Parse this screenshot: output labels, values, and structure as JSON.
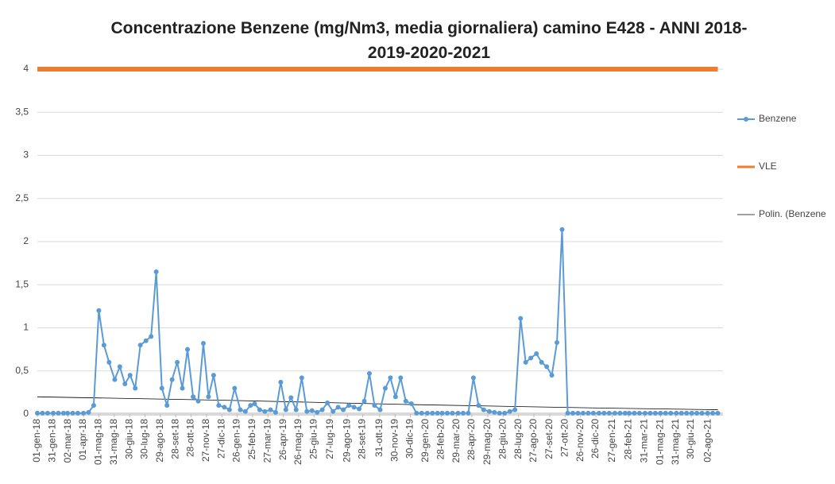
{
  "chart_data": {
    "type": "line",
    "title": "Concentrazione Benzene (mg/Nm3, media giornaliera) camino E428 - ANNI 2018-2019-2020-2021",
    "ylim": [
      0,
      4
    ],
    "yticks": [
      0,
      {
        "value": 0.5,
        "label": "0,5"
      },
      1,
      {
        "value": 1.5,
        "label": "1,5"
      },
      2,
      {
        "value": 2.5,
        "label": "2,5"
      },
      3,
      {
        "value": 3.5,
        "label": "3,5"
      },
      4
    ],
    "xlim": [
      "2018-01-01",
      "2021-08-31"
    ],
    "xticks": [
      {
        "value": "2018-01-01",
        "label": "01-gen-18"
      },
      {
        "value": "2018-01-31",
        "label": "31-gen-18"
      },
      {
        "value": "2018-03-02",
        "label": "02-mar-18"
      },
      {
        "value": "2018-04-01",
        "label": "01-apr-18"
      },
      {
        "value": "2018-05-01",
        "label": "01-mag-18"
      },
      {
        "value": "2018-05-31",
        "label": "31-mag-18"
      },
      {
        "value": "2018-06-30",
        "label": "30-giu-18"
      },
      {
        "value": "2018-07-30",
        "label": "30-lug-18"
      },
      {
        "value": "2018-08-29",
        "label": "29-ago-18"
      },
      {
        "value": "2018-09-28",
        "label": "28-set-18"
      },
      {
        "value": "2018-10-28",
        "label": "28-ott-18"
      },
      {
        "value": "2018-11-27",
        "label": "27-nov-18"
      },
      {
        "value": "2018-12-27",
        "label": "27-dic-18"
      },
      {
        "value": "2019-01-26",
        "label": "26-gen-19"
      },
      {
        "value": "2019-02-25",
        "label": "25-feb-19"
      },
      {
        "value": "2019-03-27",
        "label": "27-mar-19"
      },
      {
        "value": "2019-04-26",
        "label": "26-apr-19"
      },
      {
        "value": "2019-05-26",
        "label": "26-mag-19"
      },
      {
        "value": "2019-06-25",
        "label": "25-giu-19"
      },
      {
        "value": "2019-07-27",
        "label": "27-lug-19"
      },
      {
        "value": "2019-08-29",
        "label": "29-ago-19"
      },
      {
        "value": "2019-09-28",
        "label": "28-set-19"
      },
      {
        "value": "2019-10-31",
        "label": "31-ott-19"
      },
      {
        "value": "2019-11-30",
        "label": "30-nov-19"
      },
      {
        "value": "2019-12-30",
        "label": "30-dic-19"
      },
      {
        "value": "2020-01-29",
        "label": "29-gen-20"
      },
      {
        "value": "2020-02-28",
        "label": "28-feb-20"
      },
      {
        "value": "2020-03-29",
        "label": "29-mar-20"
      },
      {
        "value": "2020-04-28",
        "label": "28-apr-20"
      },
      {
        "value": "2020-05-29",
        "label": "29-mag-20"
      },
      {
        "value": "2020-06-28",
        "label": "28-giu-20"
      },
      {
        "value": "2020-07-28",
        "label": "28-lug-20"
      },
      {
        "value": "2020-08-27",
        "label": "27-ago-20"
      },
      {
        "value": "2020-09-27",
        "label": "27-set-20"
      },
      {
        "value": "2020-10-27",
        "label": "27-ott-20"
      },
      {
        "value": "2020-11-26",
        "label": "26-nov-20"
      },
      {
        "value": "2020-12-26",
        "label": "26-dic-20"
      },
      {
        "value": "2021-01-27",
        "label": "27-gen-21"
      },
      {
        "value": "2021-02-28",
        "label": "28-feb-21"
      },
      {
        "value": "2021-03-31",
        "label": "31-mar-21"
      },
      {
        "value": "2021-05-01",
        "label": "01-mag-21"
      },
      {
        "value": "2021-05-31",
        "label": "31-mag-21"
      },
      {
        "value": "2021-06-30",
        "label": "30-giu-21"
      },
      {
        "value": "2021-08-02",
        "label": "02-ago-21"
      }
    ],
    "series": [
      {
        "name": "Benzene",
        "color": "#5b9bd5",
        "markers": true,
        "x": [
          "2018-01-01",
          "2018-01-11",
          "2018-01-21",
          "2018-02-01",
          "2018-02-11",
          "2018-02-21",
          "2018-03-01",
          "2018-03-11",
          "2018-03-21",
          "2018-04-01",
          "2018-04-11",
          "2018-04-21",
          "2018-05-01",
          "2018-05-11",
          "2018-05-21",
          "2018-06-01",
          "2018-06-11",
          "2018-06-21",
          "2018-07-01",
          "2018-07-11",
          "2018-07-21",
          "2018-08-01",
          "2018-08-11",
          "2018-08-21",
          "2018-09-01",
          "2018-09-11",
          "2018-09-21",
          "2018-10-01",
          "2018-10-11",
          "2018-10-21",
          "2018-11-01",
          "2018-11-11",
          "2018-11-21",
          "2018-12-01",
          "2018-12-11",
          "2018-12-21",
          "2019-01-01",
          "2019-01-11",
          "2019-01-21",
          "2019-02-01",
          "2019-02-11",
          "2019-02-21",
          "2019-03-01",
          "2019-03-11",
          "2019-03-21",
          "2019-04-01",
          "2019-04-11",
          "2019-04-21",
          "2019-05-01",
          "2019-05-11",
          "2019-05-21",
          "2019-06-01",
          "2019-06-11",
          "2019-06-21",
          "2019-07-01",
          "2019-07-11",
          "2019-07-21",
          "2019-08-01",
          "2019-08-11",
          "2019-08-21",
          "2019-09-01",
          "2019-09-11",
          "2019-09-21",
          "2019-10-01",
          "2019-10-11",
          "2019-10-21",
          "2019-11-01",
          "2019-11-11",
          "2019-11-21",
          "2019-12-01",
          "2019-12-11",
          "2019-12-21",
          "2020-01-01",
          "2020-01-11",
          "2020-01-21",
          "2020-02-01",
          "2020-02-11",
          "2020-02-21",
          "2020-03-01",
          "2020-03-11",
          "2020-03-21",
          "2020-04-01",
          "2020-04-11",
          "2020-04-21",
          "2020-05-01",
          "2020-05-11",
          "2020-05-21",
          "2020-06-01",
          "2020-06-11",
          "2020-06-21",
          "2020-07-01",
          "2020-07-11",
          "2020-07-21",
          "2020-08-01",
          "2020-08-11",
          "2020-08-21",
          "2020-09-01",
          "2020-09-11",
          "2020-09-21",
          "2020-10-01",
          "2020-10-11",
          "2020-10-21",
          "2020-11-01",
          "2020-11-11",
          "2020-11-21",
          "2020-12-01",
          "2020-12-11",
          "2020-12-21",
          "2021-01-01",
          "2021-01-11",
          "2021-01-21",
          "2021-02-01",
          "2021-02-11",
          "2021-02-21",
          "2021-03-01",
          "2021-03-11",
          "2021-03-21",
          "2021-04-01",
          "2021-04-11",
          "2021-04-21",
          "2021-05-01",
          "2021-05-11",
          "2021-05-21",
          "2021-06-01",
          "2021-06-11",
          "2021-06-21",
          "2021-07-01",
          "2021-07-11",
          "2021-07-21",
          "2021-08-01",
          "2021-08-11",
          "2021-08-21"
        ],
        "values": [
          0.01,
          0.01,
          0.01,
          0.01,
          0.01,
          0.01,
          0.01,
          0.01,
          0.01,
          0.01,
          0.02,
          0.1,
          1.2,
          0.8,
          0.6,
          0.4,
          0.55,
          0.35,
          0.45,
          0.3,
          0.8,
          0.85,
          0.9,
          1.65,
          0.3,
          0.1,
          0.4,
          0.6,
          0.3,
          0.75,
          0.2,
          0.15,
          0.82,
          0.2,
          0.45,
          0.1,
          0.08,
          0.05,
          0.3,
          0.05,
          0.03,
          0.1,
          0.12,
          0.05,
          0.03,
          0.05,
          0.02,
          0.37,
          0.05,
          0.19,
          0.05,
          0.42,
          0.03,
          0.04,
          0.02,
          0.05,
          0.13,
          0.03,
          0.08,
          0.05,
          0.1,
          0.08,
          0.06,
          0.15,
          0.47,
          0.1,
          0.05,
          0.3,
          0.42,
          0.2,
          0.42,
          0.15,
          0.12,
          0.01,
          0.01,
          0.01,
          0.01,
          0.01,
          0.01,
          0.01,
          0.01,
          0.01,
          0.01,
          0.01,
          0.42,
          0.1,
          0.05,
          0.03,
          0.02,
          0.01,
          0.01,
          0.03,
          0.05,
          1.11,
          0.6,
          0.65,
          0.7,
          0.6,
          0.55,
          0.45,
          0.83,
          2.14,
          0.01,
          0.01,
          0.01,
          0.01,
          0.01,
          0.01,
          0.01,
          0.01,
          0.01,
          0.01,
          0.01,
          0.01,
          0.01,
          0.01,
          0.01,
          0.01,
          0.01,
          0.01,
          0.01,
          0.01,
          0.01,
          0.01,
          0.01,
          0.01,
          0.01,
          0.01,
          0.01,
          0.01,
          0.01,
          0.01
        ]
      },
      {
        "name": "VLE",
        "color": "#ed7d31",
        "markers": false,
        "width": 6,
        "x": [
          "2018-01-01",
          "2021-08-21"
        ],
        "values": [
          4,
          4
        ]
      },
      {
        "name": "Polin. (Benzene",
        "color": "#000000",
        "markers": false,
        "width": 0.8,
        "x": [
          "2018-01-01",
          "2019-01-01",
          "2020-01-01",
          "2021-01-01",
          "2021-08-21"
        ],
        "values": [
          0.2,
          0.16,
          0.11,
          0.07,
          0.05
        ]
      }
    ]
  }
}
